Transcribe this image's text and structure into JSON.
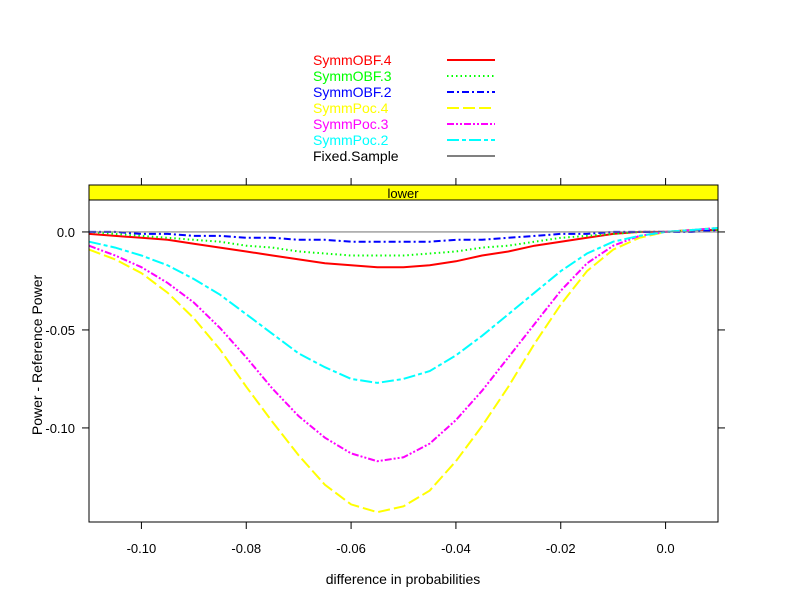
{
  "chart_data": {
    "type": "line",
    "title": "",
    "strip_label": "lower",
    "xlabel": "difference in probabilities",
    "ylabel": "Power - Reference Power",
    "xlim": [
      -0.11,
      0.01
    ],
    "ylim": [
      -0.148,
      0.0163
    ],
    "xticks": [
      -0.1,
      -0.08,
      -0.06,
      -0.04,
      -0.02,
      0.0
    ],
    "xtick_labels": [
      "-0.10",
      "-0.08",
      "-0.06",
      "-0.04",
      "-0.02",
      "0.0"
    ],
    "yticks": [
      0.0,
      -0.05,
      -0.1
    ],
    "ytick_labels": [
      "0.0",
      "-0.05",
      "-0.10"
    ],
    "legend_position": "top",
    "x": [
      -0.11,
      -0.105,
      -0.1,
      -0.095,
      -0.09,
      -0.085,
      -0.08,
      -0.075,
      -0.07,
      -0.065,
      -0.06,
      -0.055,
      -0.05,
      -0.045,
      -0.04,
      -0.035,
      -0.03,
      -0.025,
      -0.02,
      -0.015,
      -0.01,
      -0.005,
      0.0,
      0.005,
      0.01
    ],
    "series": [
      {
        "name": "SymmOBF.4",
        "color": "#ff0000",
        "dash": "",
        "values": [
          -0.001,
          -0.002,
          -0.003,
          -0.004,
          -0.006,
          -0.008,
          -0.01,
          -0.012,
          -0.014,
          -0.016,
          -0.017,
          -0.018,
          -0.018,
          -0.017,
          -0.015,
          -0.012,
          -0.01,
          -0.007,
          -0.005,
          -0.003,
          -0.001,
          0,
          0,
          0.001,
          0.001
        ]
      },
      {
        "name": "SymmOBF.3",
        "color": "#00ff00",
        "dash": "1.5,3",
        "values": [
          0,
          -0.001,
          -0.002,
          -0.003,
          -0.004,
          -0.005,
          -0.007,
          -0.008,
          -0.01,
          -0.011,
          -0.012,
          -0.012,
          -0.012,
          -0.011,
          -0.01,
          -0.008,
          -0.007,
          -0.005,
          -0.003,
          -0.002,
          -0.001,
          0,
          0,
          0.001,
          0.001
        ]
      },
      {
        "name": "SymmOBF.2",
        "color": "#0000ff",
        "dash": "7,3,2,3",
        "values": [
          0,
          0,
          -0.001,
          -0.001,
          -0.002,
          -0.002,
          -0.003,
          -0.003,
          -0.004,
          -0.004,
          -0.005,
          -0.005,
          -0.005,
          -0.005,
          -0.004,
          -0.004,
          -0.003,
          -0.002,
          -0.001,
          -0.001,
          0,
          0,
          0,
          0,
          0.001
        ]
      },
      {
        "name": "SymmPoc.4",
        "color": "#ffff00",
        "dash": "12,4",
        "values": [
          -0.009,
          -0.014,
          -0.021,
          -0.031,
          -0.044,
          -0.06,
          -0.079,
          -0.097,
          -0.114,
          -0.129,
          -0.139,
          -0.143,
          -0.14,
          -0.132,
          -0.117,
          -0.099,
          -0.079,
          -0.057,
          -0.037,
          -0.02,
          -0.009,
          -0.003,
          0,
          0.001,
          0.002
        ]
      },
      {
        "name": "SymmPoc.3",
        "color": "#ff00ff",
        "dash": "7,2,2,2,2,2",
        "values": [
          -0.007,
          -0.012,
          -0.018,
          -0.026,
          -0.036,
          -0.049,
          -0.064,
          -0.08,
          -0.094,
          -0.105,
          -0.113,
          -0.117,
          -0.115,
          -0.108,
          -0.096,
          -0.081,
          -0.064,
          -0.047,
          -0.03,
          -0.016,
          -0.007,
          -0.002,
          0,
          0.001,
          0.002
        ]
      },
      {
        "name": "SymmPoc.2",
        "color": "#00ffff",
        "dash": "12,3,4,3",
        "values": [
          -0.005,
          -0.008,
          -0.012,
          -0.017,
          -0.024,
          -0.032,
          -0.042,
          -0.052,
          -0.062,
          -0.069,
          -0.075,
          -0.077,
          -0.075,
          -0.071,
          -0.063,
          -0.053,
          -0.042,
          -0.031,
          -0.02,
          -0.011,
          -0.005,
          -0.002,
          0,
          0.001,
          0.002
        ]
      },
      {
        "name": "Fixed.Sample",
        "color": "#808080",
        "dash": "",
        "values": [
          0,
          0,
          0,
          0,
          0,
          0,
          0,
          0,
          0,
          0,
          0,
          0,
          0,
          0,
          0,
          0,
          0,
          0,
          0,
          0,
          0,
          0,
          0,
          0,
          0
        ]
      }
    ]
  }
}
